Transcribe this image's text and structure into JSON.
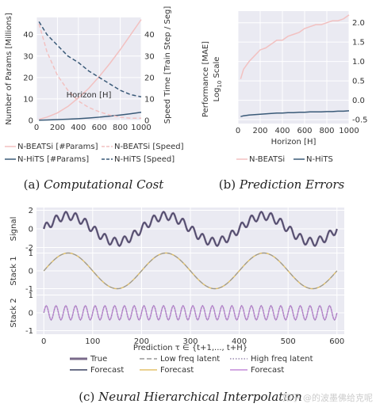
{
  "chart_data": [
    {
      "type": "line",
      "panel": "a",
      "xlabel": "Horizon [H]",
      "ylabel_left": "Number of Params [Millions]",
      "ylabel_right": "Speed Time [Train Step / Seg]",
      "x_ticks": [
        "0",
        "200",
        "400",
        "600",
        "800",
        "1000"
      ],
      "y_left_ticks": [
        "0",
        "10",
        "20",
        "30",
        "40"
      ],
      "y_right_ticks": [
        "0",
        "10",
        "20",
        "30",
        "40"
      ],
      "xlim": [
        0,
        1000
      ],
      "ylim_left": [
        0,
        48
      ],
      "ylim_right": [
        0,
        48
      ],
      "x": [
        24,
        100,
        200,
        300,
        400,
        500,
        600,
        700,
        800,
        900,
        1000
      ],
      "series": [
        {
          "name": "N-BEATSi [#Params]",
          "axis": "left",
          "color": "#f2c1c1",
          "dash": "solid",
          "values": [
            0.5,
            1.5,
            3.5,
            6.5,
            10.5,
            15,
            20.5,
            26.5,
            33,
            40,
            47
          ]
        },
        {
          "name": "N-HiTS [#Params]",
          "axis": "left",
          "color": "#3a5a78",
          "dash": "solid",
          "values": [
            0.1,
            0.2,
            0.35,
            0.55,
            0.8,
            1.1,
            1.5,
            2.0,
            2.5,
            3.1,
            3.8
          ]
        },
        {
          "name": "N-BEATSi [Speed]",
          "axis": "right",
          "color": "#f2c1c1",
          "dash": "dashed",
          "values": [
            45,
            32,
            21,
            14,
            9,
            6,
            4,
            2.5,
            1.5,
            1,
            1
          ]
        },
        {
          "name": "N-HiTS [Speed]",
          "axis": "right",
          "color": "#3a5a78",
          "dash": "dashed",
          "values": [
            46,
            40,
            35,
            30,
            27,
            23,
            20,
            17,
            14,
            12,
            11
          ]
        }
      ],
      "legend": [
        "N-BEATSi [#Params]",
        "N-BEATSi [Speed]",
        "N-HiTS [#Params]",
        "N-HiTS [Speed]"
      ],
      "caption_label": "(a)",
      "caption_title": "Computational Cost"
    },
    {
      "type": "line",
      "panel": "b",
      "xlabel": "Horizon [H]",
      "ylabel_line1": "Performance [MAE]",
      "ylabel_line2": "Log",
      "ylabel_sub": "10",
      "ylabel_line2_tail": " Scale",
      "x_ticks": [
        "0",
        "200",
        "400",
        "600",
        "800",
        "1000"
      ],
      "y_ticks": [
        "-0.5",
        "0.0",
        "0.5",
        "1.0",
        "1.5",
        "2.0"
      ],
      "xlim": [
        0,
        1000
      ],
      "ylim": [
        -0.6,
        2.3
      ],
      "x": [
        24,
        50,
        100,
        150,
        200,
        250,
        300,
        350,
        400,
        450,
        500,
        550,
        600,
        650,
        700,
        750,
        800,
        850,
        900,
        950,
        1000
      ],
      "series": [
        {
          "name": "N-BEATSi",
          "color": "#f2c1c1",
          "values": [
            0.55,
            0.8,
            1.0,
            1.15,
            1.3,
            1.35,
            1.45,
            1.55,
            1.55,
            1.65,
            1.7,
            1.75,
            1.85,
            1.9,
            1.95,
            1.95,
            2.0,
            2.05,
            2.05,
            2.1,
            2.2
          ]
        },
        {
          "name": "N-HiTS",
          "color": "#3a5a78",
          "values": [
            -0.42,
            -0.4,
            -0.38,
            -0.37,
            -0.36,
            -0.35,
            -0.34,
            -0.33,
            -0.33,
            -0.32,
            -0.32,
            -0.31,
            -0.31,
            -0.3,
            -0.3,
            -0.3,
            -0.29,
            -0.29,
            -0.28,
            -0.28,
            -0.27
          ]
        }
      ],
      "legend": [
        "N-BEATSi",
        "N-HiTS"
      ],
      "caption_label": "(b)",
      "caption_title": "Prediction Errors"
    },
    {
      "type": "line",
      "panel": "c",
      "xlabel": "Prediction τ ∈ {t+1,..., t+H}",
      "x_ticks": [
        "0",
        "100",
        "200",
        "300",
        "400",
        "500",
        "600"
      ],
      "xlim": [
        -15,
        615
      ],
      "subplots": [
        {
          "ylabel": "Signal",
          "ylim": [
            -2.3,
            2.3
          ],
          "y_ticks": [
            "-2",
            "0",
            "2"
          ],
          "series": [
            {
              "name": "True",
              "color": "#7a6a8a",
              "style": "solid",
              "freq_low_period": 200,
              "low_amp": 1.4,
              "high_period": 20,
              "high_amp": 0.45
            },
            {
              "name": "Forecast",
              "color": "#3a4060",
              "style": "thin"
            }
          ]
        },
        {
          "ylabel": "Stack 1",
          "ylim": [
            -1.2,
            1.2
          ],
          "y_ticks": [
            "-1",
            "0",
            "1"
          ],
          "series": [
            {
              "name": "Low freq latent",
              "color": "#999999",
              "style": "dashed",
              "period": 200,
              "amp": 1.0
            },
            {
              "name": "Forecast",
              "color": "#e3c26b",
              "style": "solid"
            }
          ]
        },
        {
          "ylabel": "Stack 2",
          "ylim": [
            -1.2,
            1.2
          ],
          "y_ticks": [
            "-1",
            "0",
            "1"
          ],
          "series": [
            {
              "name": "High freq latent",
              "color": "#9a8ab0",
              "style": "dotted",
              "period": 20,
              "amp": 0.4
            },
            {
              "name": "Forecast",
              "color": "#c38ad8",
              "style": "solid"
            }
          ]
        }
      ],
      "legend": {
        "signal": [
          {
            "name": "True",
            "color": "#7a6a8a",
            "style": "thick"
          },
          {
            "name": "Forecast",
            "color": "#3a4060",
            "style": "thin"
          }
        ],
        "stack1": [
          {
            "name": "Low freq latent",
            "color": "#999999",
            "style": "dashed"
          },
          {
            "name": "Forecast",
            "color": "#e3c26b",
            "style": "solid"
          }
        ],
        "stack2": [
          {
            "name": "High freq latent",
            "color": "#9a8ab0",
            "style": "dotted"
          },
          {
            "name": "Forecast",
            "color": "#c38ad8",
            "style": "solid"
          }
        ]
      },
      "caption_label": "(c)",
      "caption_title": "Neural Hierarchical Interpolation"
    }
  ],
  "watermark": "知乎 @的波墨佛给克呢"
}
